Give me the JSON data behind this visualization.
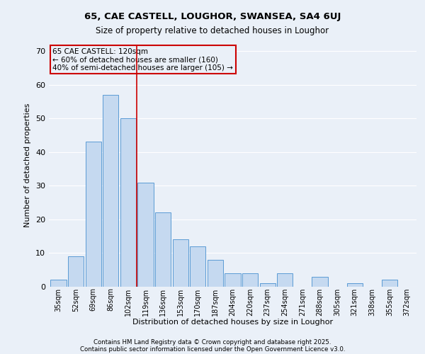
{
  "title1": "65, CAE CASTELL, LOUGHOR, SWANSEA, SA4 6UJ",
  "title2": "Size of property relative to detached houses in Loughor",
  "xlabel": "Distribution of detached houses by size in Loughor",
  "ylabel": "Number of detached properties",
  "categories": [
    "35sqm",
    "52sqm",
    "69sqm",
    "86sqm",
    "102sqm",
    "119sqm",
    "136sqm",
    "153sqm",
    "170sqm",
    "187sqm",
    "204sqm",
    "220sqm",
    "237sqm",
    "254sqm",
    "271sqm",
    "288sqm",
    "305sqm",
    "321sqm",
    "338sqm",
    "355sqm",
    "372sqm"
  ],
  "values": [
    2,
    9,
    43,
    57,
    50,
    31,
    22,
    14,
    12,
    8,
    4,
    4,
    1,
    4,
    0,
    3,
    0,
    1,
    0,
    2,
    0
  ],
  "bar_color": "#c5d9f0",
  "bar_edge_color": "#5b9bd5",
  "background_color": "#eaf0f8",
  "grid_color": "#ffffff",
  "annotation_title": "65 CAE CASTELL: 120sqm",
  "annotation_line1": "← 60% of detached houses are smaller (160)",
  "annotation_line2": "40% of semi-detached houses are larger (105) →",
  "annotation_box_color": "#cc0000",
  "red_line_x": 4.5,
  "ylim": [
    0,
    72
  ],
  "yticks": [
    0,
    10,
    20,
    30,
    40,
    50,
    60,
    70
  ],
  "footer1": "Contains HM Land Registry data © Crown copyright and database right 2025.",
  "footer2": "Contains public sector information licensed under the Open Government Licence v3.0."
}
